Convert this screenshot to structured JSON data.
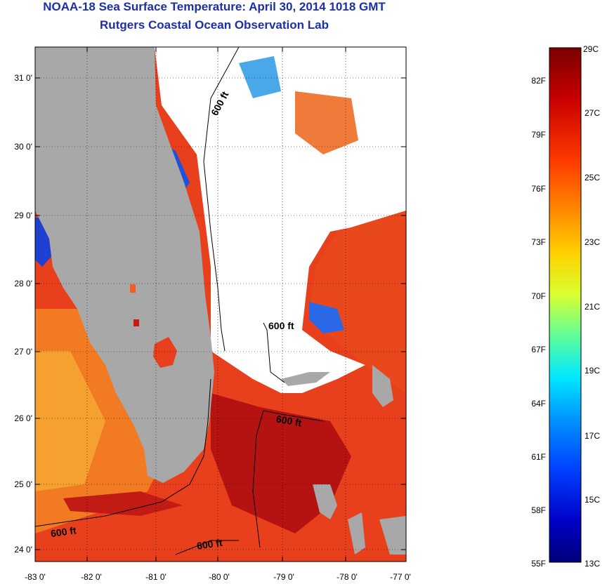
{
  "header": {
    "title": "NOAA-18 Sea Surface Temperature:  April 30, 2014 1018 GMT",
    "subtitle": "Rutgers Coastal Ocean Observation Lab"
  },
  "map": {
    "lat_ticks": [
      "31 0'",
      "30 0'",
      "29 0'",
      "28 0'",
      "27 0'",
      "26 0'",
      "25 0'",
      "24 0'"
    ],
    "lon_ticks": [
      "-83 0'",
      "-82 0'",
      "-81 0'",
      "-80 0'",
      "-79 0'",
      "-78 0'",
      "-77 0'"
    ],
    "contour_labels": [
      "600 ft",
      "600 ft",
      "600 ft",
      "600 ft"
    ],
    "colors": {
      "land": "#a8a8a8",
      "cloud": "#ffffff",
      "warm_sea": "#e8301a",
      "hot_sea": "#b01010",
      "cool_sea": "#f39a2a",
      "cold_sea": "#1840d8"
    }
  },
  "legend": {
    "fahrenheit_labels": [
      "82F",
      "79F",
      "76F",
      "73F",
      "70F",
      "67F",
      "64F",
      "61F",
      "58F",
      "55F"
    ],
    "celsius_labels": [
      "29C",
      "27C",
      "25C",
      "23C",
      "21C",
      "19C",
      "17C",
      "15C",
      "13C"
    ],
    "gradient_colors": [
      "#7a0000",
      "#c80000",
      "#ff3a00",
      "#ff8c00",
      "#ffd200",
      "#d8ff30",
      "#60ff9a",
      "#00e8ff",
      "#0096ff",
      "#0040ff",
      "#0000c8",
      "#00007a"
    ]
  }
}
